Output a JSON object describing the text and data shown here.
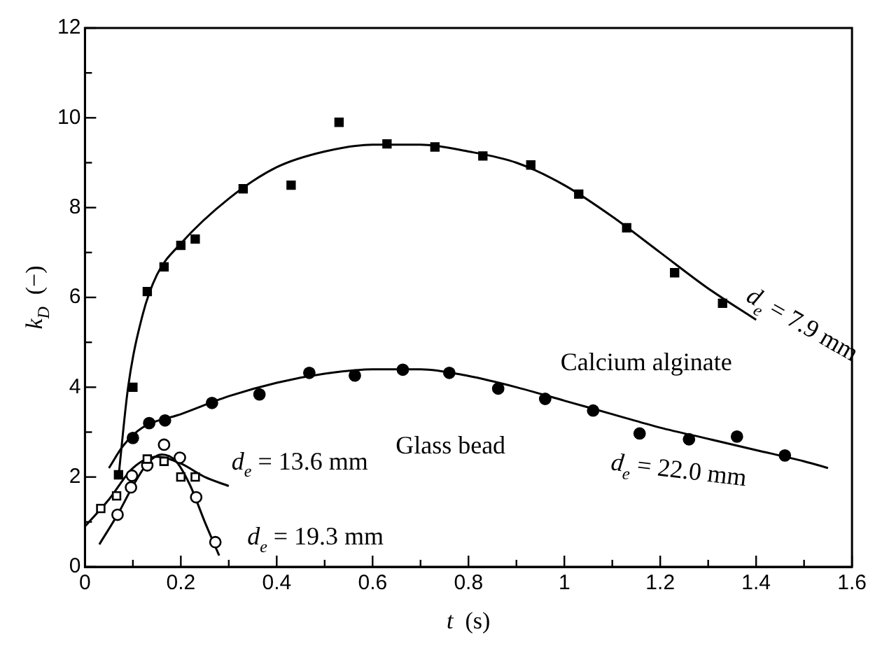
{
  "chart_data": {
    "type": "scatter",
    "xlabel": "t  (s)",
    "ylabel": "k$_{D}$  (−)",
    "xlim": [
      0,
      1.6
    ],
    "ylim": [
      0,
      12
    ],
    "xticks": [
      0,
      {
        "value": 0.1,
        "label": null
      },
      0.2,
      {
        "value": 0.3,
        "label": null
      },
      0.4,
      {
        "value": 0.5,
        "label": null
      },
      0.6,
      {
        "value": 0.7,
        "label": null
      },
      0.8,
      {
        "value": 0.9,
        "label": null
      },
      1,
      {
        "value": 1.1,
        "label": null
      },
      1.2,
      {
        "value": 1.3,
        "label": null
      },
      1.4,
      {
        "value": 1.5,
        "label": null
      },
      1.6
    ],
    "yticks": [
      0,
      {
        "value": 1,
        "label": null
      },
      2,
      {
        "value": 3,
        "label": null
      },
      4,
      {
        "value": 5,
        "label": null
      },
      6,
      {
        "value": 7,
        "label": null
      },
      8,
      {
        "value": 9,
        "label": null
      },
      10,
      {
        "value": 11,
        "label": null
      },
      12
    ],
    "grid": false,
    "legend": false,
    "series": [
      {
        "marker": "square",
        "color": "#000000",
        "x": [
          0.07,
          0.1,
          0.13,
          0.165,
          0.2,
          0.23,
          0.33,
          0.43,
          0.53,
          0.63,
          0.73,
          0.83,
          0.93,
          1.03,
          1.13,
          1.23,
          1.33
        ],
        "values": [
          2.05,
          4.0,
          6.13,
          6.68,
          7.16,
          7.3,
          8.42,
          8.5,
          9.9,
          9.42,
          9.35,
          9.15,
          8.95,
          8.3,
          7.55,
          6.55,
          5.87
        ]
      },
      {
        "marker": "circle",
        "color": "#000000",
        "x": [
          0.1,
          0.134,
          0.167,
          0.265,
          0.364,
          0.468,
          0.563,
          0.663,
          0.76,
          0.862,
          0.96,
          1.06,
          1.157,
          1.26,
          1.36,
          1.46
        ],
        "values": [
          2.87,
          3.2,
          3.26,
          3.65,
          3.84,
          4.32,
          4.26,
          4.39,
          4.32,
          3.97,
          3.74,
          3.48,
          2.97,
          2.84,
          2.9,
          2.48
        ]
      },
      {
        "marker": "square",
        "color": "#000000",
        "x": [
          0.033,
          0.066,
          0.13,
          0.165,
          0.2,
          0.23
        ],
        "values": [
          1.3,
          1.58,
          2.4,
          2.35,
          2.0,
          2.0
        ]
      },
      {
        "marker": "circle",
        "color": "#000000",
        "x": [
          0.068,
          0.096,
          0.098,
          0.13,
          0.165,
          0.198,
          0.232,
          0.272
        ],
        "values": [
          1.16,
          1.77,
          2.03,
          2.26,
          2.72,
          2.43,
          1.55,
          0.55
        ]
      },
      {
        "type": "line",
        "marker": "none",
        "color": "#000000",
        "x": [
          0.07,
          0.09,
          0.12,
          0.15,
          0.2,
          0.3,
          0.4,
          0.5,
          0.6,
          0.7,
          0.8,
          0.9,
          1.0,
          1.1,
          1.2,
          1.3,
          1.4
        ],
        "values": [
          2.0,
          4.0,
          5.6,
          6.5,
          7.2,
          8.2,
          8.9,
          9.25,
          9.4,
          9.4,
          9.25,
          9.0,
          8.5,
          7.8,
          7.0,
          6.2,
          5.5
        ]
      },
      {
        "type": "line",
        "marker": "none",
        "color": "#000000",
        "x": [
          0.05,
          0.08,
          0.12,
          0.2,
          0.3,
          0.4,
          0.5,
          0.6,
          0.7,
          0.8,
          0.9,
          1.0,
          1.1,
          1.2,
          1.3,
          1.4,
          1.5,
          1.55
        ],
        "values": [
          2.2,
          2.7,
          3.1,
          3.4,
          3.8,
          4.1,
          4.3,
          4.4,
          4.4,
          4.25,
          4.0,
          3.7,
          3.4,
          3.1,
          2.85,
          2.6,
          2.35,
          2.2
        ]
      },
      {
        "type": "line",
        "marker": "none",
        "color": "#000000",
        "x": [
          0.0,
          0.05,
          0.1,
          0.15,
          0.2,
          0.25,
          0.3
        ],
        "values": [
          0.9,
          1.5,
          2.2,
          2.45,
          2.3,
          2.0,
          1.8
        ]
      },
      {
        "type": "line",
        "marker": "none",
        "color": "#000000",
        "x": [
          0.03,
          0.07,
          0.1,
          0.13,
          0.16,
          0.19,
          0.22,
          0.25,
          0.28
        ],
        "values": [
          0.5,
          1.2,
          1.8,
          2.3,
          2.5,
          2.35,
          1.8,
          1.0,
          0.25
        ]
      }
    ],
    "annotations": [
      {
        "text": "d$_{e}$ = 7.9 mm",
        "x": 1.4,
        "y": 5.5
      },
      "Calcium alginate",
      {
        "text": "d$_{e}$ = 22.0 mm",
        "x": 1.3,
        "y": 2.85
      },
      {
        "text": "d$_{e}$ = 13.6 mm",
        "x": 0.3,
        "y": 1.8
      },
      "Glass bead",
      {
        "text": "d$_{e}$ = 19.3 mm",
        "x": 0.28,
        "y": 0.25
      }
    ]
  }
}
